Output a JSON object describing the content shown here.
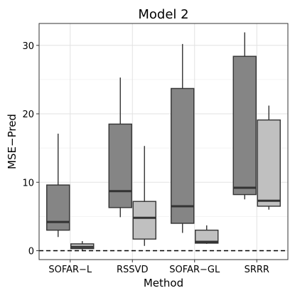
{
  "chart_data": {
    "type": "box",
    "title": "Model 2",
    "xlabel": "Method",
    "ylabel": "MSE−Pred",
    "categories": [
      "SOFAR−L",
      "RSSVD",
      "SOFAR−GL",
      "SRRR"
    ],
    "ylim": [
      -1.3,
      33.2
    ],
    "yticks": [
      0,
      10,
      20,
      30
    ],
    "grid": true,
    "legend": "none",
    "reference_line": {
      "y": 0,
      "style": "dashed"
    },
    "series": [
      {
        "color": "#858585",
        "boxes": [
          {
            "whisker_low": 2.0,
            "q1": 3.0,
            "median": 4.2,
            "q3": 9.6,
            "whisker_high": 17.1
          },
          {
            "whisker_low": 4.9,
            "q1": 6.3,
            "median": 8.7,
            "q3": 18.5,
            "whisker_high": 25.3
          },
          {
            "whisker_low": 2.6,
            "q1": 4.0,
            "median": 6.5,
            "q3": 23.7,
            "whisker_high": 30.2
          },
          {
            "whisker_low": 7.5,
            "q1": 8.2,
            "median": 9.2,
            "q3": 28.4,
            "whisker_high": 31.9
          }
        ]
      },
      {
        "color": "#c0c0c0",
        "boxes": [
          {
            "whisker_low": 0.05,
            "q1": 0.3,
            "median": 0.55,
            "q3": 1.0,
            "whisker_high": 1.4
          },
          {
            "whisker_low": 0.7,
            "q1": 1.7,
            "median": 4.8,
            "q3": 7.2,
            "whisker_high": 15.3
          },
          {
            "whisker_low": 1.0,
            "q1": 1.1,
            "median": 1.3,
            "q3": 3.0,
            "whisker_high": 3.7
          },
          {
            "whisker_low": 6.0,
            "q1": 6.5,
            "median": 7.3,
            "q3": 19.1,
            "whisker_high": 21.2
          }
        ]
      }
    ]
  }
}
